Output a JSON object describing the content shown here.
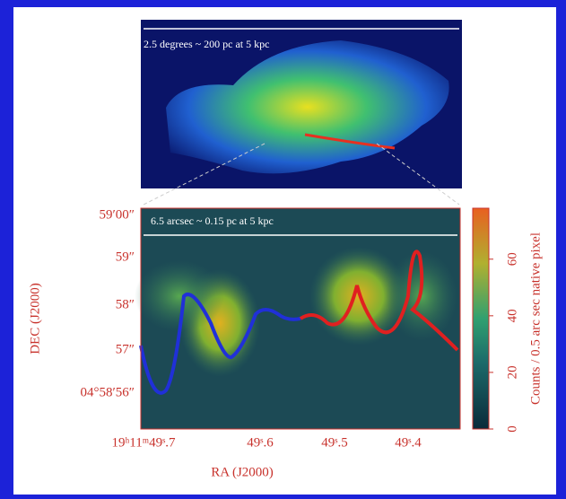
{
  "top_image": {
    "annotation": "2.5 degrees ~ 200 pc at 5 kpc"
  },
  "zoom_plot": {
    "annotation": "6.5 arcsec ~ 0.15 pc at 5 kpc",
    "x_label": "RA (J2000)",
    "y_label": "DEC (J2000)",
    "x_tick_labels": [
      "19ʰ11ᵐ49ˢ.7",
      "49ˢ.6",
      "49ˢ.5",
      "49ˢ.4"
    ],
    "y_tick_labels": [
      "59′00″",
      "59″",
      "58″",
      "57″",
      "04°58′56″"
    ]
  },
  "colorbar": {
    "label": "Counts / 0.5 arc sec native pixel",
    "lim": [
      0,
      78
    ],
    "ticks": [
      0,
      20,
      40,
      60
    ]
  }
}
